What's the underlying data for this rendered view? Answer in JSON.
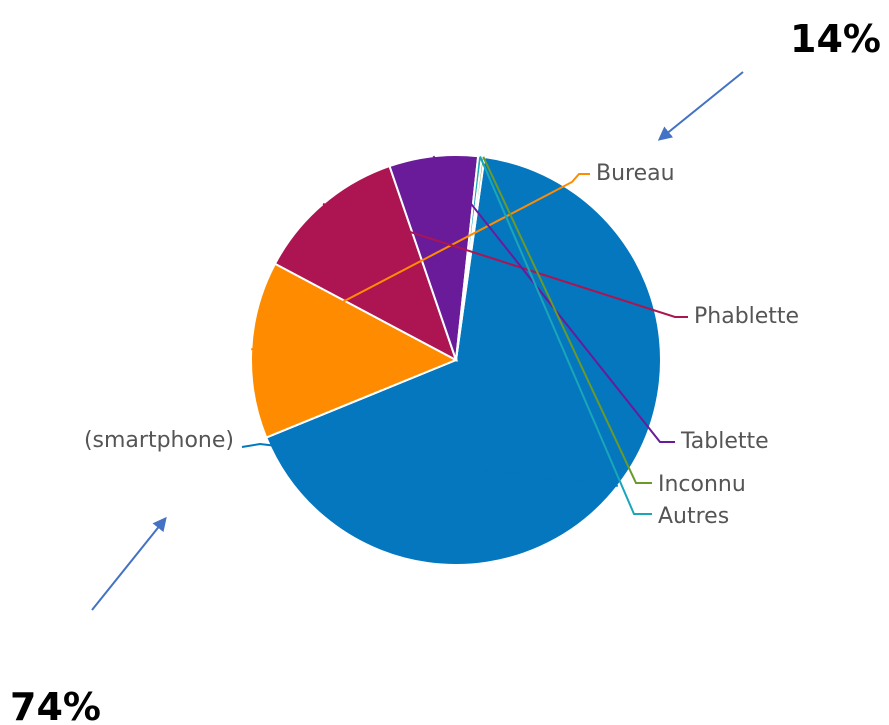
{
  "chart_data": {
    "type": "pie",
    "title": "",
    "categories": [
      "(smartphone)",
      "Bureau",
      "Phablette",
      "Tablette",
      "Inconnu",
      "Autres"
    ],
    "values": [
      66.8,
      14.0,
      12.0,
      7.0,
      0.2,
      0.3
    ],
    "colors": [
      "#0477bf",
      "#ff8c00",
      "#ac1552",
      "#6a1b9a",
      "#6a9a2a",
      "#1aa6b7"
    ],
    "legend": "none"
  },
  "annotations": {
    "top_callout": "14%",
    "bottom_callout": "74%",
    "arrow_color": "#4472c4"
  }
}
